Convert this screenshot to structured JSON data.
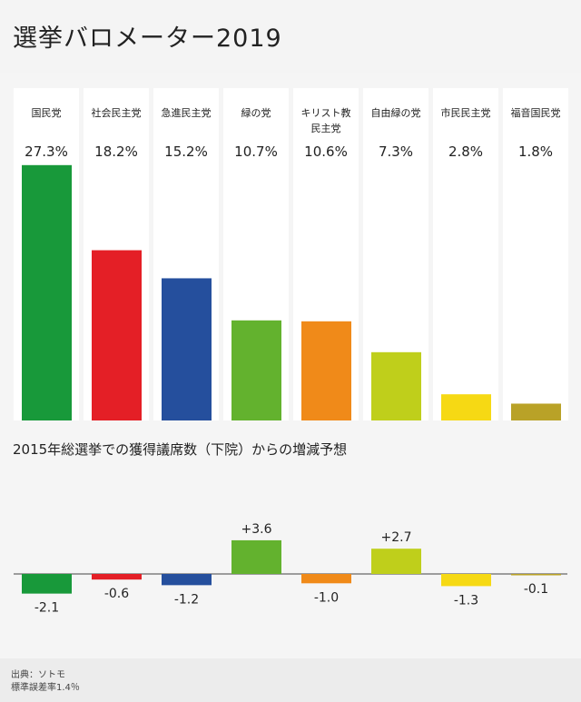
{
  "header": {
    "title": "選挙バロメーター2019"
  },
  "chart_data": [
    {
      "type": "bar",
      "categories": [
        "国民党",
        "社会民主党",
        "急進民主党",
        "緑の党",
        "キリスト教民主党",
        "自由緑の党",
        "市民民主党",
        "福音国民党"
      ],
      "category_lines": [
        [
          "国民党"
        ],
        [
          "社会民主党"
        ],
        [
          "急進民主党"
        ],
        [
          "緑の党"
        ],
        [
          "キリスト教",
          "民主党"
        ],
        [
          "自由緑の党"
        ],
        [
          "市民民主党"
        ],
        [
          "福音国民党"
        ]
      ],
      "values": [
        27.3,
        18.2,
        15.2,
        10.7,
        10.6,
        7.3,
        2.8,
        1.8
      ],
      "value_labels": [
        "27.3%",
        "18.2%",
        "15.2%",
        "10.7%",
        "10.6%",
        "7.3%",
        "2.8%",
        "1.8%"
      ],
      "colors": [
        "#18993a",
        "#e41f26",
        "#254f9d",
        "#63b22e",
        "#f08a19",
        "#bfcf1b",
        "#f6d914",
        "#b9a227"
      ],
      "ylim": [
        0,
        28
      ]
    },
    {
      "type": "bar",
      "title": "2015年総選挙での獲得議席数（下院）からの増減予想",
      "categories": [
        "国民党",
        "社会民主党",
        "急進民主党",
        "緑の党",
        "キリスト教民主党",
        "自由緑の党",
        "市民民主党",
        "福音国民党"
      ],
      "values": [
        -2.1,
        -0.6,
        -1.2,
        3.6,
        -1.0,
        2.7,
        -1.3,
        -0.1
      ],
      "value_labels": [
        "-2.1",
        "-0.6",
        "-1.2",
        "+3.6",
        "-1.0",
        "+2.7",
        "-1.3",
        "-0.1"
      ],
      "colors": [
        "#18993a",
        "#e41f26",
        "#254f9d",
        "#63b22e",
        "#f08a19",
        "#bfcf1b",
        "#f6d914",
        "#b9a227"
      ]
    }
  ],
  "footer": {
    "source": "出典：ソトモ",
    "error": "標準誤差率1.4％"
  }
}
